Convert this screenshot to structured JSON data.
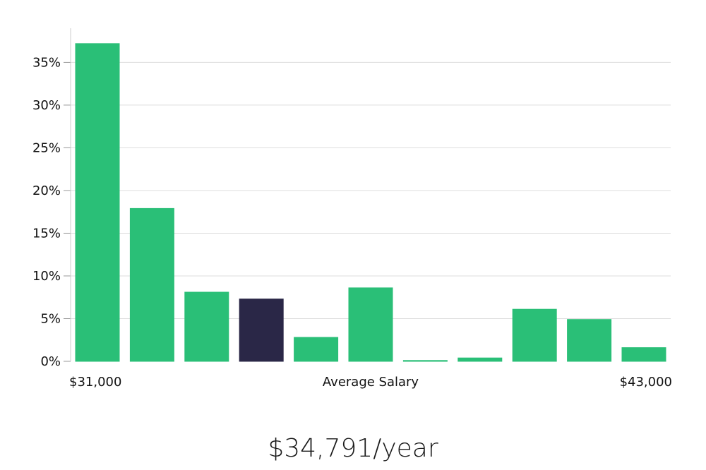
{
  "summary": {
    "salary_text": "$34,791/year"
  },
  "colors": {
    "bar": "#2abf77",
    "highlight": "#2a2747",
    "grid": "#dddddd",
    "axis": "#cccccc"
  },
  "chart_data": {
    "type": "bar",
    "title": "",
    "xlabel": "Average Salary",
    "ylabel": "",
    "x_range_labels": {
      "min": "$31,000",
      "max": "$43,000"
    },
    "ylim": [
      0,
      0.39
    ],
    "yticks": [
      0,
      0.05,
      0.1,
      0.15,
      0.2,
      0.25,
      0.3,
      0.35
    ],
    "ytick_labels": [
      "0%",
      "5%",
      "10%",
      "15%",
      "20%",
      "25%",
      "30%",
      "35%"
    ],
    "values": [
      0.372,
      0.179,
      0.081,
      0.073,
      0.028,
      0.086,
      0.001,
      0.004,
      0.061,
      0.049,
      0.016
    ],
    "highlight_index": 3,
    "grid": true,
    "legend": "none"
  }
}
